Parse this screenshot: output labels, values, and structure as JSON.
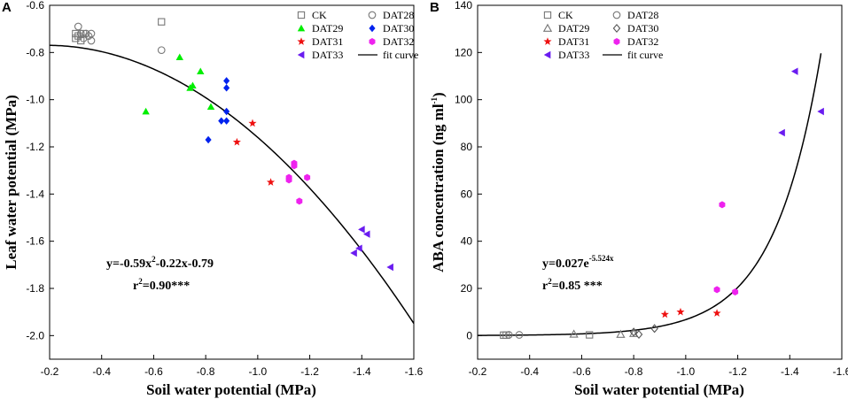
{
  "chart_data": [
    {
      "panel": "A",
      "type": "scatter",
      "xlabel": "Soil water potential (MPa)",
      "ylabel": "Leaf water potential (MPa)",
      "xlim": [
        -0.2,
        -1.6
      ],
      "ylim": [
        -2.1,
        -0.6
      ],
      "xticks": [
        -0.2,
        -0.4,
        -0.6,
        -0.8,
        -1.0,
        -1.2,
        -1.4,
        -1.6
      ],
      "xtick_labels": [
        "-0.2",
        "-0.4",
        "-0.6",
        "-0.8",
        "-1.0",
        "-1.2",
        "-1.4",
        "-1.6"
      ],
      "yticks": [
        -0.6,
        -0.8,
        -1.0,
        -1.2,
        -1.4,
        -1.6,
        -1.8,
        -2.0
      ],
      "ytick_labels": [
        "-0.6",
        "-0.8",
        "-1.0",
        "-1.2",
        "-1.4",
        "-1.6",
        "-1.8",
        "-2.0"
      ],
      "series": [
        {
          "name": "CK",
          "marker": "square-open",
          "color": "#777777",
          "points": [
            [
              -0.3,
              -0.72
            ],
            [
              -0.3,
              -0.74
            ],
            [
              -0.31,
              -0.73
            ],
            [
              -0.32,
              -0.75
            ],
            [
              -0.33,
              -0.72
            ],
            [
              -0.63,
              -0.67
            ]
          ]
        },
        {
          "name": "DAT28",
          "marker": "circle-open",
          "color": "#777777",
          "points": [
            [
              -0.31,
              -0.69
            ],
            [
              -0.32,
              -0.72
            ],
            [
              -0.33,
              -0.74
            ],
            [
              -0.34,
              -0.72
            ],
            [
              -0.35,
              -0.73
            ],
            [
              -0.36,
              -0.72
            ],
            [
              -0.36,
              -0.75
            ],
            [
              -0.63,
              -0.79
            ]
          ]
        },
        {
          "name": "DAT29",
          "marker": "triangle-up",
          "color": "#00ee00",
          "points": [
            [
              -0.57,
              -1.05
            ],
            [
              -0.7,
              -0.82
            ],
            [
              -0.74,
              -0.95
            ],
            [
              -0.75,
              -0.94
            ],
            [
              -0.78,
              -0.88
            ],
            [
              -0.82,
              -1.03
            ]
          ]
        },
        {
          "name": "DAT30",
          "marker": "diamond",
          "color": "#0022ee",
          "points": [
            [
              -0.81,
              -1.17
            ],
            [
              -0.86,
              -1.09
            ],
            [
              -0.88,
              -0.92
            ],
            [
              -0.88,
              -0.95
            ],
            [
              -0.88,
              -1.05
            ],
            [
              -0.88,
              -1.09
            ]
          ]
        },
        {
          "name": "DAT31",
          "marker": "star",
          "color": "#ee1111",
          "points": [
            [
              -0.92,
              -1.18
            ],
            [
              -0.98,
              -1.1
            ],
            [
              -1.05,
              -1.35
            ]
          ]
        },
        {
          "name": "DAT32",
          "marker": "hexagon",
          "color": "#ee22ee",
          "points": [
            [
              -1.12,
              -1.33
            ],
            [
              -1.12,
              -1.34
            ],
            [
              -1.14,
              -1.27
            ],
            [
              -1.14,
              -1.28
            ],
            [
              -1.16,
              -1.43
            ],
            [
              -1.19,
              -1.33
            ]
          ]
        },
        {
          "name": "DAT33",
          "marker": "triangle-left",
          "color": "#6a1cf0",
          "points": [
            [
              -1.37,
              -1.65
            ],
            [
              -1.39,
              -1.63
            ],
            [
              -1.4,
              -1.55
            ],
            [
              -1.42,
              -1.57
            ],
            [
              -1.51,
              -1.71
            ]
          ]
        }
      ],
      "fit": {
        "label": "fit curve",
        "model": "quadratic",
        "a": -0.59,
        "b": -0.22,
        "c": -0.79,
        "x_from": -0.2,
        "x_to": -1.6
      },
      "equation": "y=-0.59x²-0.22x-0.79",
      "eq_parts": {
        "pre": "y=-0.59x",
        "sup": "2",
        "post": "-0.22x-0.79"
      },
      "r2_label": "r²=0.90***",
      "r2_parts": {
        "pre": "r",
        "sup": "2",
        "post": "=0.90***"
      }
    },
    {
      "panel": "B",
      "type": "scatter",
      "xlabel": "Soil water potential (MPa)",
      "ylabel": "ABA concentration (ng ml⁻¹)",
      "ylabel_parts": {
        "pre": "ABA concentration (ng ml",
        "sup": "-1",
        "post": ")"
      },
      "xlim": [
        -0.2,
        -1.6
      ],
      "ylim": [
        -10,
        140
      ],
      "xticks": [
        -0.2,
        -0.4,
        -0.6,
        -0.8,
        -1.0,
        -1.2,
        -1.4,
        -1.6
      ],
      "xtick_labels": [
        "-0.2",
        "-0.4",
        "-0.6",
        "-0.8",
        "-1.0",
        "-1.2",
        "-1.4",
        "-1.6"
      ],
      "yticks": [
        0,
        20,
        40,
        60,
        80,
        100,
        120,
        140
      ],
      "ytick_labels": [
        "0",
        "20",
        "40",
        "60",
        "80",
        "100",
        "120",
        "140"
      ],
      "series": [
        {
          "name": "CK",
          "marker": "square-open",
          "color": "#777777",
          "points": [
            [
              -0.3,
              0.2
            ],
            [
              -0.31,
              0.2
            ],
            [
              -0.63,
              0.3
            ]
          ]
        },
        {
          "name": "DAT28",
          "marker": "circle-open",
          "color": "#777777",
          "points": [
            [
              -0.32,
              0.3
            ],
            [
              -0.36,
              0.3
            ]
          ]
        },
        {
          "name": "DAT29",
          "marker": "triangle-open",
          "color": "#777777",
          "points": [
            [
              -0.57,
              0.6
            ],
            [
              -0.75,
              0.5
            ],
            [
              -0.8,
              0.9
            ]
          ]
        },
        {
          "name": "DAT30",
          "marker": "diamond-open",
          "color": "#555555",
          "points": [
            [
              -0.8,
              1.5
            ],
            [
              -0.82,
              0.5
            ],
            [
              -0.88,
              3.0
            ]
          ]
        },
        {
          "name": "DAT31",
          "marker": "star",
          "color": "#ee1111",
          "points": [
            [
              -0.92,
              9.0
            ],
            [
              -0.98,
              10.0
            ],
            [
              -1.12,
              9.5
            ]
          ]
        },
        {
          "name": "DAT32",
          "marker": "hexagon",
          "color": "#ee22ee",
          "points": [
            [
              -1.12,
              19.5
            ],
            [
              -1.14,
              55.5
            ],
            [
              -1.19,
              18.5
            ]
          ]
        },
        {
          "name": "DAT33",
          "marker": "triangle-left",
          "color": "#6a1cf0",
          "points": [
            [
              -1.37,
              86.0
            ],
            [
              -1.42,
              112.0
            ],
            [
              -1.52,
              95.0
            ]
          ]
        }
      ],
      "fit": {
        "label": "fit curve",
        "model": "exponential",
        "a": 0.027,
        "k": -5.524,
        "x_from": -0.2,
        "x_to": -1.52
      },
      "equation": "y=0.027e^(-5.524x)",
      "eq_parts": {
        "pre": "y=0.027e",
        "sup": "-5.524x",
        "post": ""
      },
      "r2_label": "r²=0.85 ***",
      "r2_parts": {
        "pre": "r",
        "sup": "2",
        "post": "=0.85 ***"
      }
    }
  ]
}
